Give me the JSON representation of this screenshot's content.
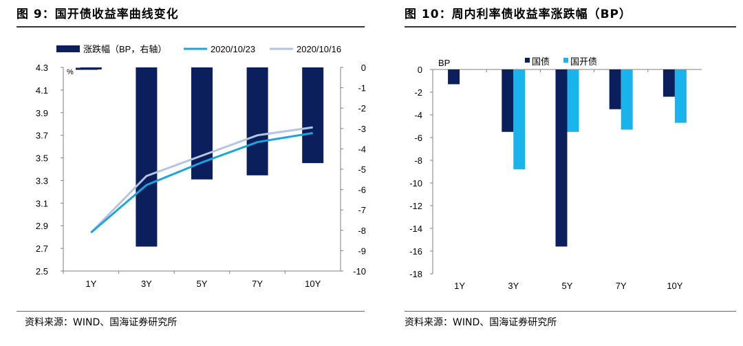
{
  "left_figure": {
    "title": "图 9：国开债收益率曲线变化",
    "source": "资料来源：WIND、国海证券研究所"
  },
  "right_figure": {
    "title": "图 10：周内利率债收益率涨跌幅（BP）",
    "source": "资料来源：WIND、国海证券研究所"
  },
  "chart_data": [
    {
      "type": "bar+line",
      "categories": [
        "1Y",
        "3Y",
        "5Y",
        "7Y",
        "10Y"
      ],
      "series": [
        {
          "name": "涨跌幅（BP，右轴）",
          "kind": "bar",
          "axis": "right",
          "color": "#0b1f5c",
          "values": [
            -0.1,
            -8.8,
            -5.5,
            -5.3,
            -4.7
          ]
        },
        {
          "name": "2020/10/23",
          "kind": "line",
          "axis": "left",
          "color": "#19a6dc",
          "values": [
            2.84,
            3.26,
            3.46,
            3.64,
            3.72
          ]
        },
        {
          "name": "2020/10/16",
          "kind": "line",
          "axis": "left",
          "color": "#b5c4e0",
          "values": [
            2.84,
            3.34,
            3.52,
            3.7,
            3.77
          ]
        }
      ],
      "left_axis": {
        "unit": "%",
        "ylim": [
          2.5,
          4.3
        ],
        "ticks": [
          "4.3",
          "4.1",
          "3.9",
          "3.7",
          "3.5",
          "3.3",
          "3.1",
          "2.9",
          "2.7",
          "2.5"
        ]
      },
      "right_axis": {
        "ylim": [
          -10,
          0
        ],
        "ticks": [
          "0",
          "-1",
          "-2",
          "-3",
          "-4",
          "-5",
          "-6",
          "-7",
          "-8",
          "-9",
          "-10"
        ]
      },
      "legend_placement": "top",
      "grid": false
    },
    {
      "type": "bar",
      "categories": [
        "1Y",
        "3Y",
        "5Y",
        "7Y",
        "10Y"
      ],
      "series": [
        {
          "name": "国债",
          "color": "#0b1f5c",
          "values": [
            -1.3,
            -5.5,
            -15.6,
            -3.5,
            -2.4
          ]
        },
        {
          "name": "国开债",
          "color": "#19b4ec",
          "values": [
            0,
            -8.8,
            -5.5,
            -5.3,
            -4.7
          ]
        }
      ],
      "ylabel": "BP",
      "ylim": [
        -18,
        0
      ],
      "yticks": [
        "0",
        "-2",
        "-4",
        "-6",
        "-8",
        "-10",
        "-12",
        "-14",
        "-16",
        "-18"
      ],
      "legend_placement": "top",
      "grid": false
    }
  ]
}
